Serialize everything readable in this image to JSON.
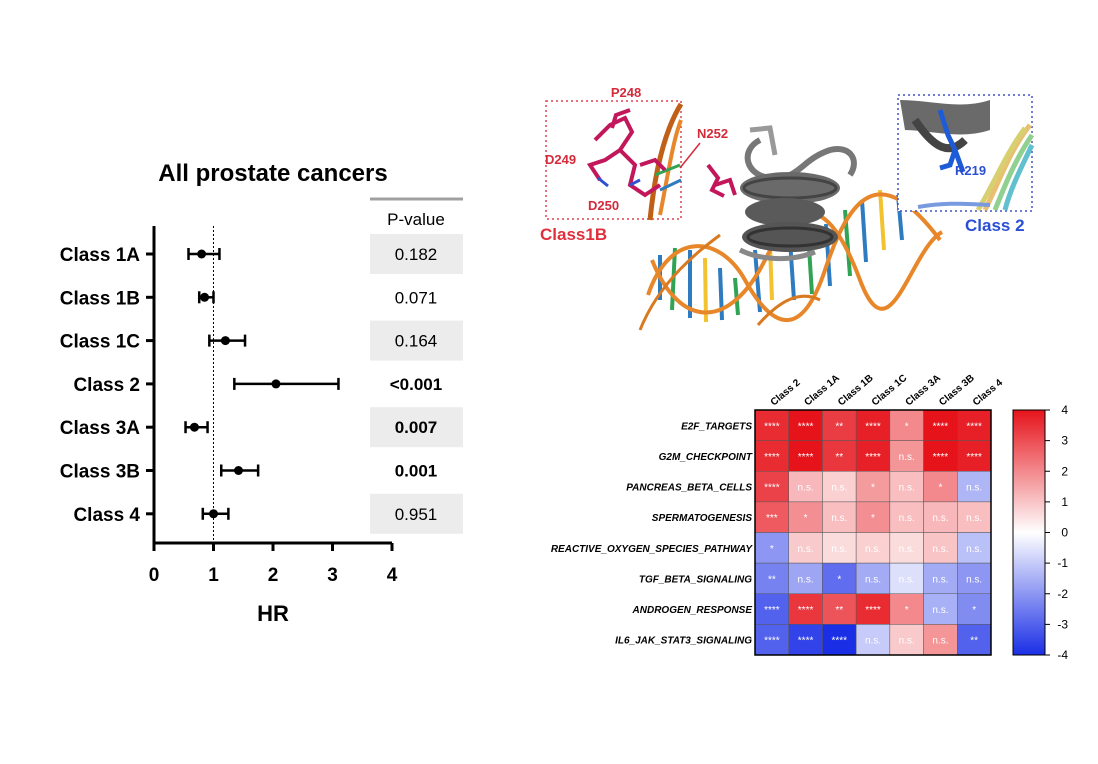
{
  "chart_data": [
    {
      "type": "forest",
      "title": "All prostate cancers",
      "xlabel": "HR",
      "xlim": [
        0,
        4
      ],
      "x_ticks": [
        "0",
        "1",
        "2",
        "3",
        "4"
      ],
      "reference_line": 1,
      "categories": [
        "Class 1A",
        "Class 1B",
        "Class 1C",
        "Class 2",
        "Class 3A",
        "Class 3B",
        "Class 4"
      ],
      "hr": [
        0.8,
        0.85,
        1.2,
        2.05,
        0.68,
        1.42,
        1.0
      ],
      "ci_low": [
        0.58,
        0.76,
        0.93,
        1.35,
        0.53,
        1.13,
        0.82
      ],
      "ci_high": [
        1.1,
        1.0,
        1.53,
        3.1,
        0.9,
        1.75,
        1.25
      ],
      "pvalue_header": "P-value",
      "pvalues": [
        "0.182",
        "0.071",
        "0.164",
        "<0.001",
        "0.007",
        "0.001",
        "0.951"
      ],
      "pvalue_bold": [
        false,
        false,
        false,
        true,
        true,
        true,
        false
      ],
      "pvalue_shaded": [
        true,
        false,
        true,
        false,
        true,
        false,
        true
      ]
    },
    {
      "type": "heatmap",
      "columns": [
        "Class 2",
        "Class 1A",
        "Class 1B",
        "Class 1C",
        "Class 3A",
        "Class 3B",
        "Class 4"
      ],
      "rows": [
        "E2F_TARGETS",
        "G2M_CHECKPOINT",
        "PANCREAS_BETA_CELLS",
        "SPERMATOGENESIS",
        "REACTIVE_OXYGEN_SPECIES_PATHWAY",
        "TGF_BETA_SIGNALING",
        "ANDROGEN_RESPONSE",
        "IL6_JAK_STAT3_SIGNALING"
      ],
      "values": [
        [
          3.6,
          4.0,
          3.3,
          3.8,
          2.0,
          4.0,
          3.8
        ],
        [
          3.6,
          4.0,
          3.4,
          3.8,
          1.8,
          4.0,
          3.8
        ],
        [
          3.2,
          1.2,
          0.8,
          1.7,
          1.1,
          2.0,
          -1.4
        ],
        [
          2.8,
          1.9,
          1.1,
          1.9,
          1.1,
          1.2,
          1.1
        ],
        [
          -2.0,
          0.9,
          0.6,
          0.8,
          0.6,
          1.0,
          -1.2
        ],
        [
          -2.4,
          -1.7,
          -2.8,
          -1.6,
          -0.6,
          -1.6,
          -2.0
        ],
        [
          -3.0,
          3.4,
          2.9,
          3.6,
          2.0,
          -1.5,
          -2.2
        ],
        [
          -3.0,
          -3.6,
          -4.0,
          -1.0,
          0.9,
          1.8,
          -3.0
        ]
      ],
      "labels": [
        [
          "****",
          "****",
          "**",
          "****",
          "*",
          "****",
          "****"
        ],
        [
          "****",
          "****",
          "**",
          "****",
          "n.s.",
          "****",
          "****"
        ],
        [
          "****",
          "n.s.",
          "n.s.",
          "*",
          "n.s.",
          "*",
          "n.s."
        ],
        [
          "***",
          "*",
          "n.s.",
          "*",
          "n.s.",
          "n.s.",
          "n.s."
        ],
        [
          "*",
          "n.s.",
          "n.s.",
          "n.s.",
          "n.s.",
          "n.s.",
          "n.s."
        ],
        [
          "**",
          "n.s.",
          "*",
          "n.s.",
          "n.s.",
          "n.s.",
          "n.s."
        ],
        [
          "****",
          "****",
          "**",
          "****",
          "*",
          "n.s.",
          "*"
        ],
        [
          "****",
          "****",
          "****",
          "n.s.",
          "n.s.",
          "n.s.",
          "**"
        ]
      ],
      "colorbar": {
        "range": [
          -4,
          4
        ],
        "ticks": [
          "4",
          "3",
          "2",
          "1",
          "0",
          "-1",
          "-2",
          "-3",
          "-4"
        ],
        "colors": {
          "low": "#1a2ee6",
          "mid": "#ffffff",
          "high": "#e6131b"
        }
      }
    }
  ],
  "structure_panel": {
    "residue_labels_red": [
      "P248",
      "N252",
      "D249",
      "D250"
    ],
    "residue_label_blue": "R219",
    "class_label_left": "Class1B",
    "class_label_right": "Class 2",
    "colors": {
      "dna_backbone": "#e8862a",
      "protein": "#555555",
      "highlight_red": "#c2185b",
      "highlight_blue": "#1e5bd6",
      "box_red": "#e04050",
      "box_blue": "#4050c8"
    }
  }
}
